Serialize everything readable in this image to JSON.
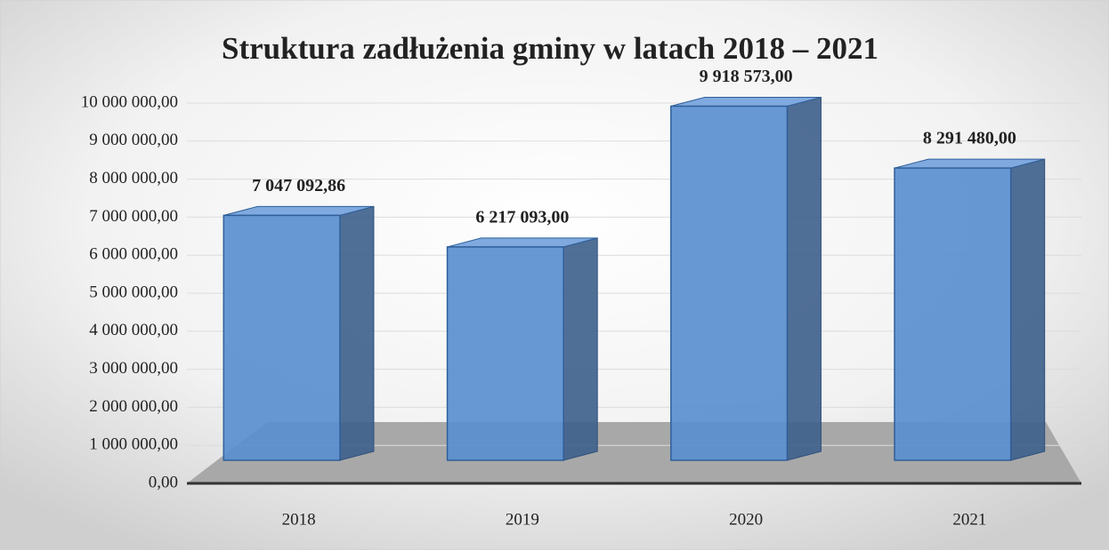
{
  "chart_data": {
    "type": "bar",
    "title": "Struktura zadłużenia gminy w latach 2018 – 2021",
    "categories": [
      "2018",
      "2019",
      "2020",
      "2021"
    ],
    "values": [
      7047092.86,
      6217093,
      9918573,
      8291480
    ],
    "value_labels": [
      "7 047 092,86",
      "6 217 093,00",
      "9 918 573,00",
      "8 291 480,00"
    ],
    "color": "#5b8fd0",
    "ylim": [
      0,
      10000000
    ],
    "yticks": [
      {
        "value": 0,
        "label": "0,00"
      },
      {
        "value": 1000000,
        "label": "1 000 000,00"
      },
      {
        "value": 2000000,
        "label": "2 000 000,00"
      },
      {
        "value": 3000000,
        "label": "3 000 000,00"
      },
      {
        "value": 4000000,
        "label": "4 000 000,00"
      },
      {
        "value": 5000000,
        "label": "5 000 000,00"
      },
      {
        "value": 6000000,
        "label": "6 000 000,00"
      },
      {
        "value": 7000000,
        "label": "7 000 000,00"
      },
      {
        "value": 8000000,
        "label": "8 000 000,00"
      },
      {
        "value": 9000000,
        "label": "9 000 000,00"
      },
      {
        "value": 10000000,
        "label": "10 000 000,00"
      }
    ],
    "grid": true
  }
}
